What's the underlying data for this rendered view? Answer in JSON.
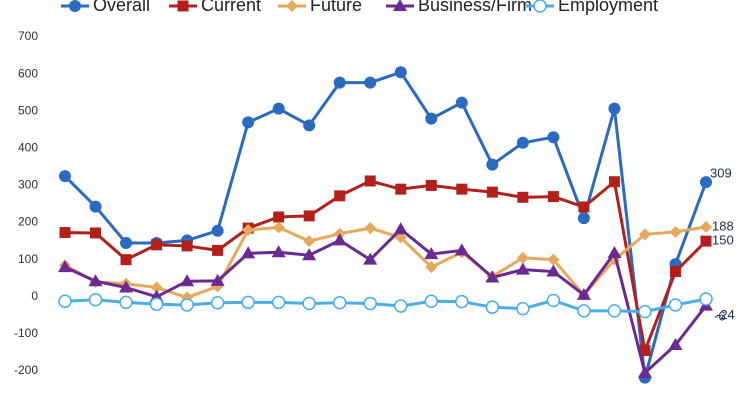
{
  "chart_data": {
    "type": "line",
    "categories": [
      null,
      null,
      null,
      null,
      null,
      null,
      null,
      null,
      null,
      null,
      null,
      null,
      null,
      null,
      null,
      null,
      null,
      null,
      null,
      null,
      null,
      null
    ],
    "series": [
      {
        "name": "Overall",
        "color": "#2a6ac0",
        "marker": "circle",
        "values": [
          325,
          243,
          145,
          145,
          152,
          178,
          470,
          507,
          462,
          577,
          577,
          605,
          480,
          523,
          356,
          415,
          430,
          212,
          507,
          -218,
          88,
          309
        ]
      },
      {
        "name": "Current",
        "color": "#b3201c",
        "marker": "square",
        "values": [
          173,
          172,
          100,
          140,
          137,
          125,
          185,
          215,
          218,
          272,
          312,
          290,
          300,
          290,
          282,
          268,
          270,
          242,
          310,
          -145,
          68,
          150
        ]
      },
      {
        "name": "Future",
        "color": "#e6a85c",
        "marker": "diamond",
        "values": [
          85,
          40,
          35,
          25,
          -2,
          28,
          180,
          187,
          150,
          170,
          185,
          160,
          80,
          120,
          55,
          105,
          100,
          5,
          100,
          168,
          175,
          188
        ]
      },
      {
        "name": "Business/Firm",
        "color": "#6a2a92",
        "marker": "triangle",
        "values": [
          80,
          42,
          25,
          0,
          42,
          43,
          117,
          120,
          112,
          152,
          100,
          182,
          115,
          125,
          52,
          73,
          68,
          5,
          118,
          -205,
          -130,
          -24
        ]
      },
      {
        "name": "Employment",
        "color": "#4aaee6",
        "marker": "open-circle",
        "values": [
          -12,
          -8,
          -15,
          -20,
          -22,
          -16,
          -15,
          -15,
          -18,
          -16,
          -18,
          -25,
          -12,
          -13,
          -28,
          -32,
          -10,
          -38,
          -38,
          -40,
          -22,
          -6
        ]
      }
    ],
    "ylim": [
      -200,
      700
    ],
    "yticks": [
      -200,
      -100,
      0,
      100,
      200,
      300,
      400,
      500,
      600,
      700
    ],
    "grid": false
  }
}
